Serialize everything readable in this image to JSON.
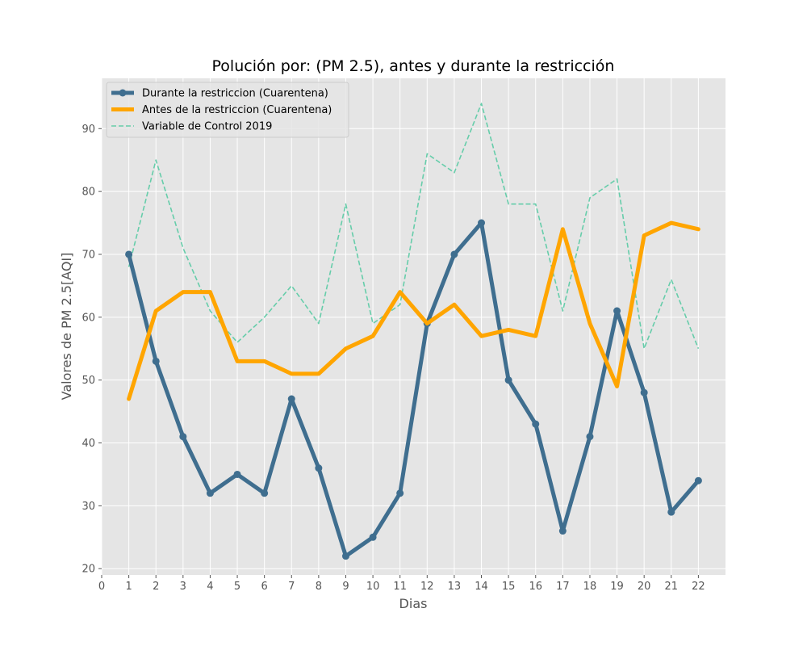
{
  "chart_data": {
    "type": "line",
    "title": "Polución por: (PM 2.5), antes y durante la restricción",
    "xlabel": "Dias",
    "ylabel": "Valores de PM 2.5[AQI]",
    "x": [
      1,
      2,
      3,
      4,
      5,
      6,
      7,
      8,
      9,
      10,
      11,
      12,
      13,
      14,
      15,
      16,
      17,
      18,
      19,
      20,
      21,
      22
    ],
    "xlim": [
      0,
      23
    ],
    "ylim": [
      19,
      98
    ],
    "x_ticks": [
      0,
      1,
      2,
      3,
      4,
      5,
      6,
      7,
      8,
      9,
      10,
      11,
      12,
      13,
      14,
      15,
      16,
      17,
      18,
      19,
      20,
      21,
      22
    ],
    "y_ticks": [
      20,
      30,
      40,
      50,
      60,
      70,
      80,
      90
    ],
    "grid": true,
    "legend_position": "top-left",
    "series": [
      {
        "name": "Durante la restriccion (Cuarentena)",
        "color": "#3f6e8f",
        "style": "solid-with-markers",
        "values": [
          70,
          53,
          41,
          32,
          35,
          32,
          47,
          36,
          22,
          25,
          32,
          59,
          70,
          75,
          50,
          43,
          26,
          41,
          61,
          48,
          29,
          34
        ]
      },
      {
        "name": "Antes de la restriccion (Cuarentena)",
        "color": "#ffa500",
        "style": "solid",
        "values": [
          47,
          61,
          64,
          64,
          53,
          53,
          51,
          51,
          55,
          57,
          64,
          59,
          62,
          57,
          58,
          57,
          74,
          59,
          49,
          73,
          75,
          74
        ]
      },
      {
        "name": "Variable de Control 2019",
        "color": "#66cdaa",
        "style": "dashed",
        "values": [
          68,
          85,
          71,
          61,
          56,
          60,
          65,
          59,
          78,
          59,
          62,
          86,
          83,
          94,
          78,
          78,
          61,
          79,
          82,
          55,
          66,
          55
        ]
      }
    ]
  }
}
